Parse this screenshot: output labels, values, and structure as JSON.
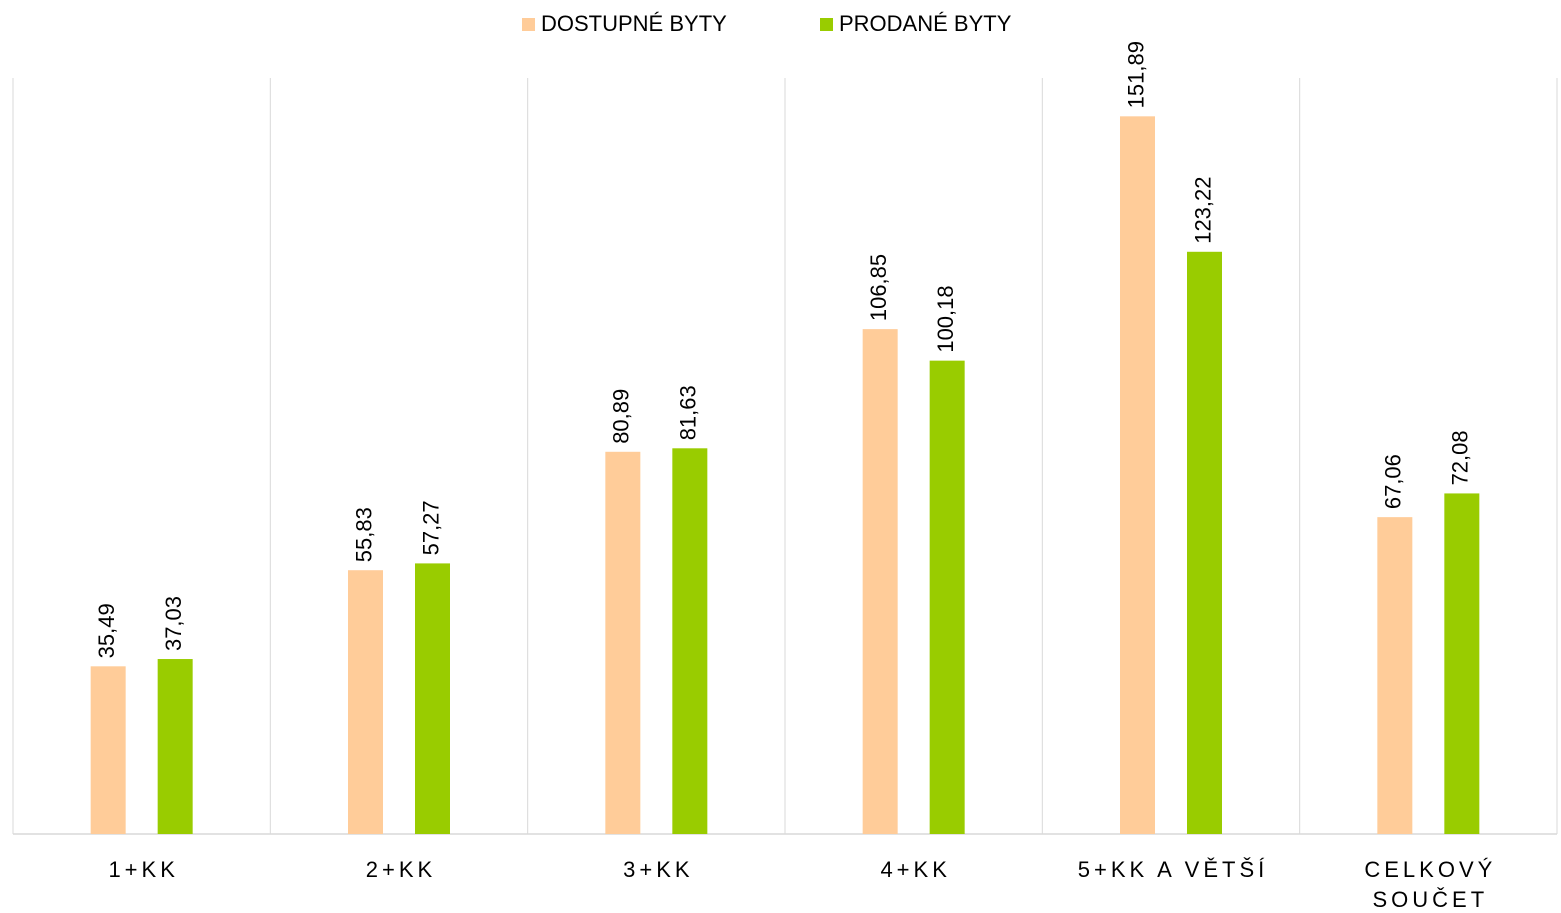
{
  "chart_data": {
    "type": "bar",
    "categories": [
      "1+KK",
      "2+KK",
      "3+KK",
      "4+KK",
      "5+KK A VĚTŠÍ",
      "CELKOVÝ SOUČET"
    ],
    "series": [
      {
        "name": "DOSTUPNÉ BYTY",
        "color": "#ffcc99",
        "values": [
          35.49,
          55.83,
          80.89,
          106.85,
          151.89,
          67.06
        ],
        "value_labels": [
          "35,49",
          "55,83",
          "80,89",
          "106,85",
          "151,89",
          "67,06"
        ]
      },
      {
        "name": "PRODANÉ BYTY",
        "color": "#99cc00",
        "values": [
          37.03,
          57.27,
          81.63,
          100.18,
          123.22,
          72.08
        ],
        "value_labels": [
          "37,03",
          "57,27",
          "81,63",
          "100,18",
          "123,22",
          "72,08"
        ]
      }
    ],
    "ylim": [
      0,
      160
    ],
    "legend": "top",
    "grid": true
  }
}
